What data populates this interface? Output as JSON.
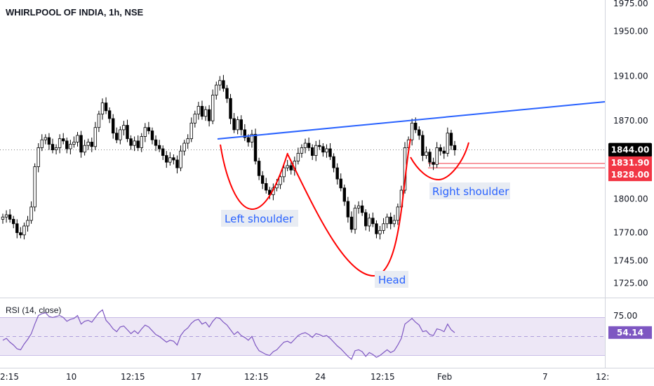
{
  "header": {
    "title": "WHIRLPOOL OF INDIA, 1h, NSE",
    "rsi_title": "RSI (14, close)"
  },
  "price_axis": {
    "ticks": [
      "1975.00",
      "1950.00",
      "1910.00",
      "1870.00",
      "1800.00",
      "1770.00",
      "1745.00",
      "1725.00"
    ],
    "tick_values": [
      1975,
      1950,
      1910,
      1870,
      1800,
      1770,
      1745,
      1725
    ]
  },
  "badges": {
    "last": "1844.00",
    "level_high": "1831.90",
    "level_low": "1828.00",
    "rsi": "54.14"
  },
  "rsi_axis": {
    "tick": "75.00"
  },
  "time_axis": {
    "labels": [
      "2:15",
      "10",
      "12:15",
      "17",
      "12:15",
      "24",
      "12:15",
      "Feb",
      "7",
      "12:"
    ]
  },
  "annotations": {
    "left_shoulder": "Left shoulder",
    "head": "Head",
    "right_shoulder": "Right shoulder"
  },
  "colors": {
    "candle": "#000000",
    "neckline": "#2962ff",
    "pattern": "#ff0000",
    "level": "#f23645",
    "rsi_line": "#7e57c2",
    "rsi_band": "#ede7f6",
    "last_badge": "#000000"
  },
  "chart_data": {
    "type": "candlestick",
    "title": "WHIRLPOOL OF INDIA, 1h, NSE",
    "price_ylim": [
      1712,
      1978
    ],
    "last_price": 1844.0,
    "levels": [
      1831.9,
      1828.0
    ],
    "closes": [
      1784,
      1786,
      1782,
      1778,
      1770,
      1768,
      1776,
      1781,
      1793,
      1829,
      1846,
      1853,
      1855,
      1849,
      1844,
      1846,
      1854,
      1852,
      1845,
      1849,
      1851,
      1857,
      1842,
      1848,
      1851,
      1847,
      1864,
      1876,
      1886,
      1879,
      1872,
      1859,
      1853,
      1862,
      1866,
      1854,
      1848,
      1852,
      1846,
      1856,
      1864,
      1861,
      1853,
      1848,
      1845,
      1839,
      1833,
      1837,
      1835,
      1828,
      1843,
      1850,
      1854,
      1868,
      1876,
      1883,
      1874,
      1880,
      1870,
      1893,
      1902,
      1906,
      1899,
      1890,
      1872,
      1862,
      1871,
      1862,
      1855,
      1851,
      1858,
      1834,
      1821,
      1814,
      1808,
      1804,
      1810,
      1813,
      1820,
      1828,
      1830,
      1826,
      1834,
      1841,
      1846,
      1850,
      1846,
      1839,
      1848,
      1847,
      1842,
      1845,
      1838,
      1828,
      1818,
      1810,
      1798,
      1784,
      1773,
      1792,
      1794,
      1788,
      1776,
      1783,
      1778,
      1769,
      1772,
      1778,
      1784,
      1778,
      1781,
      1793,
      1808,
      1846,
      1853,
      1868,
      1862,
      1857,
      1839,
      1842,
      1833,
      1831,
      1846,
      1843,
      1841,
      1859,
      1848,
      1844
    ],
    "rsi": [
      46,
      48,
      44,
      41,
      37,
      36,
      42,
      47,
      53,
      63,
      72,
      74,
      75,
      71,
      70,
      71,
      72,
      70,
      66,
      68,
      69,
      72,
      63,
      66,
      67,
      65,
      70,
      75,
      78,
      67,
      63,
      58,
      55,
      60,
      61,
      57,
      53,
      56,
      53,
      58,
      62,
      60,
      56,
      52,
      50,
      47,
      44,
      46,
      45,
      41,
      51,
      56,
      59,
      64,
      67,
      68,
      63,
      65,
      60,
      66,
      70,
      69,
      65,
      62,
      57,
      52,
      55,
      51,
      49,
      46,
      50,
      41,
      35,
      33,
      31,
      30,
      34,
      36,
      40,
      44,
      45,
      43,
      47,
      51,
      53,
      54,
      52,
      49,
      53,
      52,
      50,
      51,
      48,
      44,
      40,
      37,
      33,
      29,
      26,
      35,
      36,
      34,
      29,
      33,
      31,
      28,
      30,
      33,
      36,
      33,
      35,
      41,
      48,
      63,
      66,
      69,
      65,
      62,
      55,
      56,
      52,
      51,
      58,
      57,
      55,
      63,
      57,
      54
    ],
    "rsi_ylim": [
      20,
      88
    ],
    "rsi_band": [
      30,
      70
    ]
  }
}
